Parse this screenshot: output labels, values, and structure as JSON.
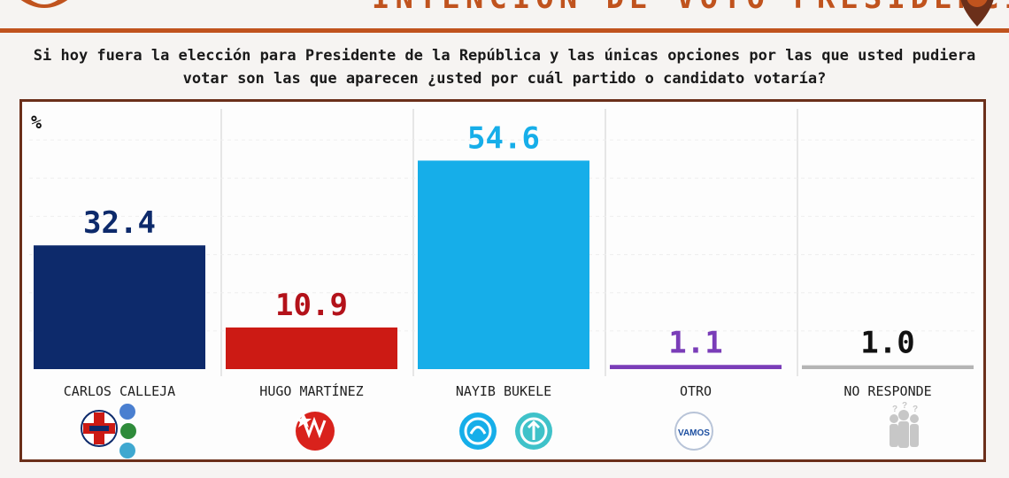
{
  "header": {
    "title": "INTENCIÓN DE VOTO PRESIDENCIAL",
    "question": "Si hoy fuera la elección para Presidente de la República y las únicas opciones por las que usted pudiera votar son las que aparecen ¿usted por cuál partido o candidato votaría?"
  },
  "colors": {
    "accent": "#c0531e",
    "frame": "#6b2f1a"
  },
  "icons": [
    "party-logo-icon",
    "location-pin-icon",
    "arena-party-icon",
    "fmln-party-icon",
    "nuevas-ideas-party-icon",
    "gana-party-icon",
    "vamos-party-icon",
    "people-question-icon"
  ],
  "chart_data": {
    "type": "bar",
    "unit_label": "%",
    "categories": [
      "CARLOS CALLEJA",
      "HUGO MARTÍNEZ",
      "NAYIB BUKELE",
      "OTRO",
      "NO RESPONDE"
    ],
    "values": [
      32.4,
      10.9,
      54.6,
      1.1,
      1.0
    ],
    "value_labels": [
      "32.4",
      "10.9",
      "54.6",
      "1.1",
      "1.0"
    ],
    "colors": [
      "#0d2a6b",
      "#cc1a14",
      "#16aee9",
      "#7a3db8",
      "#b5b5b5"
    ],
    "label_colors": [
      "#0d2a6b",
      "#b3121a",
      "#16aee9",
      "#7a3db8",
      "#111111"
    ],
    "ylim": [
      0,
      70
    ],
    "grid": true,
    "logos": [
      "VAMOS"
    ]
  }
}
